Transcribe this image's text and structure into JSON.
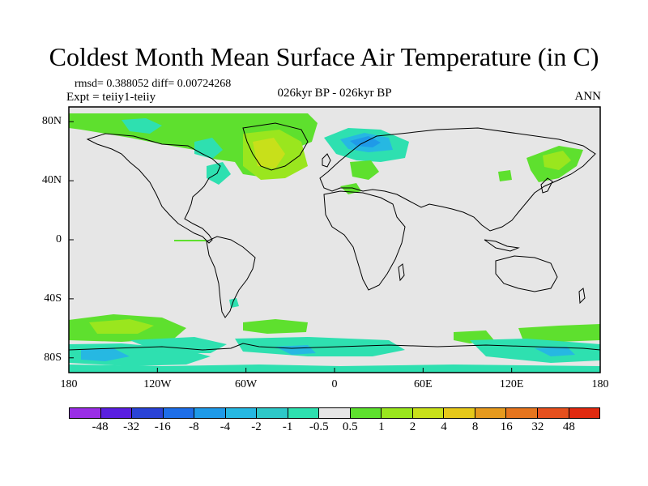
{
  "title": "Coldest Month Mean Surface Air Temperature (in C)",
  "stats_line": "rmsd= 0.388052 diff= 0.00724268",
  "experiment_line": "Expt = teiiy1-teiiy",
  "period_line": "026kyr BP - 026kyr BP",
  "season_label": "ANN",
  "map": {
    "projection": "cylindrical equidistant",
    "lon_range": [
      -180,
      180
    ],
    "lat_range": [
      -90,
      90
    ],
    "background_color": "#e6e6e6",
    "coastline_color": "#000000",
    "lat_ticks": [
      {
        "value": 80,
        "label": "80N"
      },
      {
        "value": 40,
        "label": "40N"
      },
      {
        "value": 0,
        "label": "0"
      },
      {
        "value": -40,
        "label": "40S"
      },
      {
        "value": -80,
        "label": "80S"
      }
    ],
    "lon_ticks": [
      {
        "value": -180,
        "label": "180"
      },
      {
        "value": -120,
        "label": "120W"
      },
      {
        "value": -60,
        "label": "60W"
      },
      {
        "value": 0,
        "label": "0"
      },
      {
        "value": 60,
        "label": "60E"
      },
      {
        "value": 120,
        "label": "120E"
      },
      {
        "value": 180,
        "label": "180"
      }
    ]
  },
  "colorbar": {
    "colors": [
      "#9a2ee6",
      "#5a1fe0",
      "#2a43d6",
      "#1e6ee8",
      "#1f9ae8",
      "#26b8e2",
      "#2ec8c8",
      "#2ee0b0",
      "#e6e6e6",
      "#5ee02e",
      "#9ae61e",
      "#c8e01a",
      "#e6c81a",
      "#e69a1e",
      "#e6751e",
      "#e6501e",
      "#e02a10"
    ],
    "labels": [
      "-48",
      "-32",
      "-16",
      "-8",
      "-4",
      "-2",
      "-1",
      "-0.5",
      "0.5",
      "1",
      "2",
      "4",
      "8",
      "16",
      "32",
      "48"
    ]
  }
}
